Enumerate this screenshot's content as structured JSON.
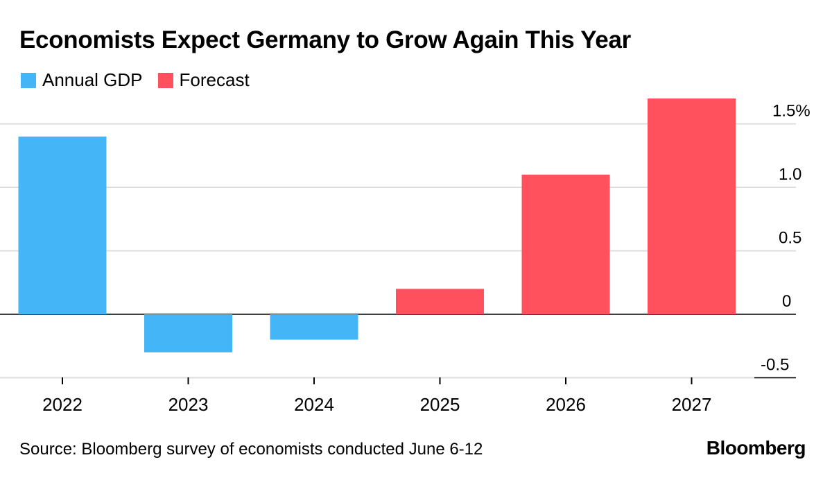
{
  "title": "Economists Expect Germany to Grow Again This Year",
  "legend": [
    {
      "label": "Annual GDP",
      "color": "#44b6f7"
    },
    {
      "label": "Forecast",
      "color": "#ff505d"
    }
  ],
  "source": "Source: Bloomberg survey of economists conducted June 6-12",
  "brand": "Bloomberg",
  "chart_data": {
    "type": "bar",
    "title": "Economists Expect Germany to Grow Again This Year",
    "xlabel": "",
    "ylabel": "",
    "categories": [
      "2022",
      "2023",
      "2024",
      "2025",
      "2026",
      "2027"
    ],
    "series": [
      {
        "name": "Annual GDP",
        "color": "#44b6f7",
        "values": [
          1.4,
          -0.3,
          -0.2,
          null,
          null,
          null
        ]
      },
      {
        "name": "Forecast",
        "color": "#ff505d",
        "values": [
          null,
          null,
          null,
          0.2,
          1.1,
          1.7
        ]
      }
    ],
    "ylim": [
      -0.5,
      1.7
    ],
    "yticks": [
      -0.5,
      0,
      0.5,
      1.0,
      1.5
    ],
    "ytick_labels": [
      "-0.5",
      "0",
      "0.5",
      "1.0",
      "1.5%"
    ],
    "y_axis_side": "right",
    "grid": true,
    "legend_position": "top-left"
  }
}
